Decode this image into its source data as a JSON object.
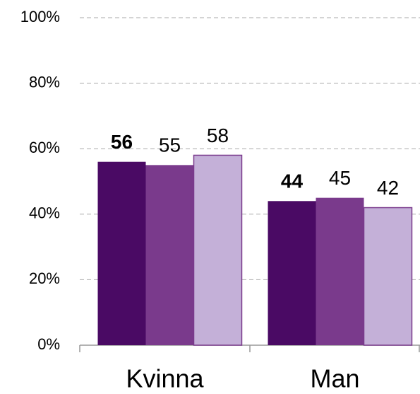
{
  "chart_data": {
    "type": "bar",
    "categories": [
      "Kvinna",
      "Man"
    ],
    "series": [
      {
        "color": "#4a0a64",
        "values": [
          56,
          44
        ],
        "bold": true
      },
      {
        "color": "#7a3a8c",
        "values": [
          55,
          45
        ]
      },
      {
        "color": "#c4b0d8",
        "edgecolor": "#7a3a8c",
        "values": [
          58,
          42
        ]
      }
    ],
    "ylim": [
      0,
      100
    ],
    "yticks": [
      {
        "value": 0,
        "label": "0%"
      },
      {
        "value": 20,
        "label": "20%"
      },
      {
        "value": 40,
        "label": "40%"
      },
      {
        "value": 60,
        "label": "60%"
      },
      {
        "value": 80,
        "label": "80%"
      },
      {
        "value": 100,
        "label": "100%"
      }
    ],
    "grid": true
  }
}
